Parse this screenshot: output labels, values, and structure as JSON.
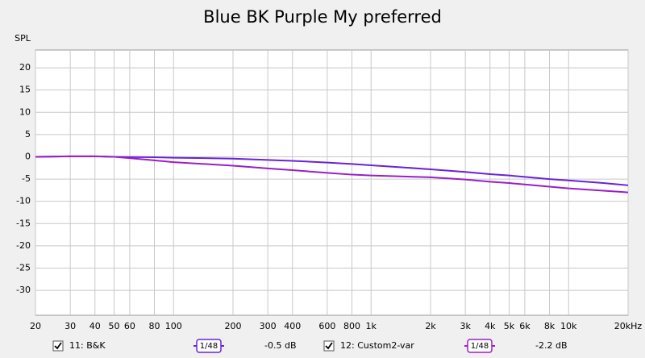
{
  "chart_data": {
    "type": "line",
    "title": "Blue BK Purple My preferred",
    "y_label": "SPL",
    "x": [
      20,
      30,
      40,
      50,
      60,
      80,
      100,
      200,
      300,
      400,
      600,
      800,
      1000,
      2000,
      3000,
      4000,
      5000,
      6000,
      8000,
      10000,
      15000,
      20000
    ],
    "series": [
      {
        "name": "11: B&K",
        "color": "#6a22d8",
        "smoothing": "1/48",
        "offset": "-0.5 dB",
        "values": [
          0,
          0.1,
          0.1,
          0,
          -0.05,
          -0.1,
          -0.2,
          -0.4,
          -0.7,
          -0.9,
          -1.3,
          -1.6,
          -1.9,
          -2.8,
          -3.4,
          -3.9,
          -4.2,
          -4.5,
          -5.0,
          -5.3,
          -5.9,
          -6.4
        ]
      },
      {
        "name": "12: Custom2-var",
        "color": "#9a1ec8",
        "smoothing": "1/48",
        "offset": "-2.2 dB",
        "values": [
          0,
          0.1,
          0.1,
          0,
          -0.3,
          -0.8,
          -1.2,
          -2.0,
          -2.6,
          -3.0,
          -3.6,
          -4.0,
          -4.2,
          -4.6,
          -5.1,
          -5.6,
          -5.9,
          -6.2,
          -6.7,
          -7.1,
          -7.6,
          -8.0
        ]
      }
    ],
    "xlim": [
      20,
      20000
    ],
    "xscale": "log",
    "xticks": [
      20,
      30,
      40,
      50,
      60,
      80,
      100,
      200,
      300,
      400,
      600,
      800,
      {
        "value": 1000,
        "label": "1k"
      },
      {
        "value": 2000,
        "label": "2k"
      },
      {
        "value": 3000,
        "label": "3k"
      },
      {
        "value": 4000,
        "label": "4k"
      },
      {
        "value": 5000,
        "label": "5k"
      },
      {
        "value": 6000,
        "label": "6k"
      },
      {
        "value": 8000,
        "label": "8k"
      },
      {
        "value": 10000,
        "label": "10k"
      },
      {
        "value": 20000,
        "label": "20kHz"
      }
    ],
    "ylim": [
      -35.6,
      24
    ],
    "yticks": [
      20,
      15,
      10,
      5,
      0,
      -5,
      -10,
      -15,
      -20,
      -25,
      -30
    ],
    "grid": true
  }
}
